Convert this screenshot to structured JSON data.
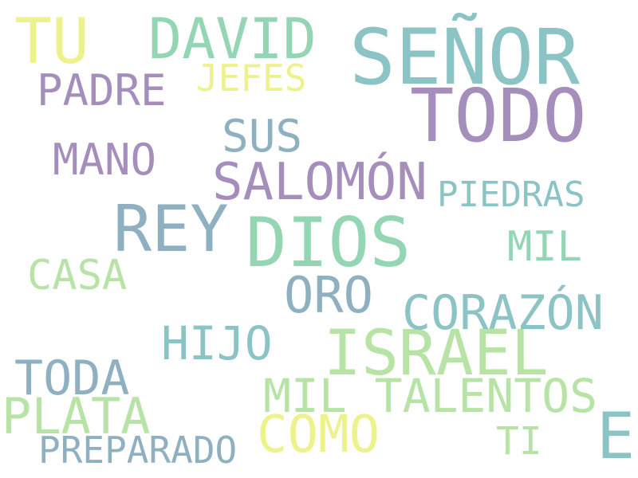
{
  "palette": {
    "teal": "#8cc3c4",
    "mint": "#94d6b4",
    "purple": "#a58ebb",
    "slate": "#8fb0c1",
    "yellow": "#eef28c",
    "light_green": "#b7e4a6"
  },
  "words": [
    {
      "id": "senor",
      "text": "SEÑOR"
    },
    {
      "id": "todo",
      "text": "TODO"
    },
    {
      "id": "dios",
      "text": "DIOS"
    },
    {
      "id": "israel",
      "text": "ISRAEL"
    },
    {
      "id": "rey",
      "text": "REY"
    },
    {
      "id": "david",
      "text": "DAVID"
    },
    {
      "id": "salomon",
      "text": "SALOMÓN"
    },
    {
      "id": "tu",
      "text": "TU"
    },
    {
      "id": "e",
      "text": "E"
    },
    {
      "id": "como",
      "text": "COMO"
    },
    {
      "id": "corazon",
      "text": "CORAZÓN"
    },
    {
      "id": "plata",
      "text": "PLATA"
    },
    {
      "id": "mil-talentos",
      "text": "MIL TALENTOS"
    },
    {
      "id": "toda",
      "text": "TODA"
    },
    {
      "id": "hijo",
      "text": "HIJO"
    },
    {
      "id": "oro",
      "text": "ORO"
    },
    {
      "id": "padre",
      "text": "PADRE"
    },
    {
      "id": "sus",
      "text": "SUS"
    },
    {
      "id": "mano",
      "text": "MANO"
    },
    {
      "id": "casa",
      "text": "CASA"
    },
    {
      "id": "mil",
      "text": "MIL"
    },
    {
      "id": "piedras",
      "text": "PIEDRAS"
    },
    {
      "id": "preparado",
      "text": "PREPARADO"
    },
    {
      "id": "jefes",
      "text": "JEFES"
    },
    {
      "id": "ti",
      "text": "TI"
    }
  ]
}
